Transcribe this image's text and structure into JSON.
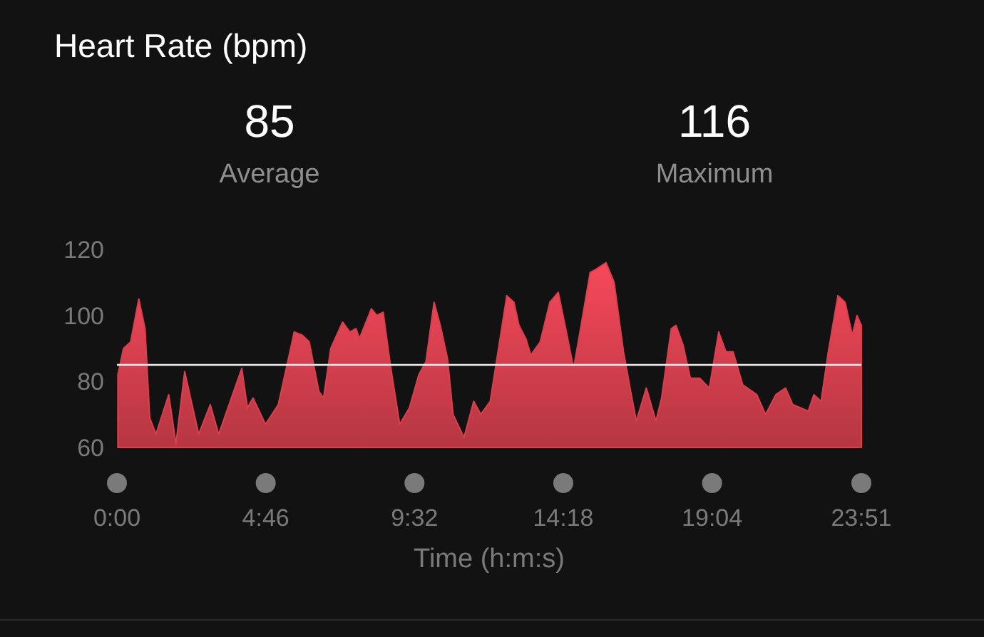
{
  "chart_data": {
    "type": "area",
    "title": "Heart Rate (bpm)",
    "xlabel": "Time (h:m:s)",
    "annotations": [
      "85",
      "Average",
      "116",
      "Maximum"
    ],
    "xlim": [
      0,
      23.85
    ],
    "ylim": [
      60,
      120
    ],
    "yticks": [
      60,
      80,
      100,
      120
    ],
    "xticks": [
      {
        "value": 0,
        "label": "0:00"
      },
      {
        "value": 4.7667,
        "label": "4:46"
      },
      {
        "value": 9.5333,
        "label": "9:32"
      },
      {
        "value": 14.3,
        "label": "14:18"
      },
      {
        "value": 19.0667,
        "label": "19:04"
      },
      {
        "value": 23.85,
        "label": "23:51"
      }
    ],
    "grid": false,
    "ref_lines": [
      {
        "axis": "y",
        "value": 85,
        "color": "#e6e6e6"
      }
    ],
    "series": [
      {
        "color": "#d9404f",
        "x": [
          0.03,
          0.21,
          0.44,
          0.7,
          0.9,
          1.05,
          1.25,
          1.66,
          1.89,
          2.17,
          2.62,
          2.99,
          3.26,
          4.0,
          4.18,
          4.36,
          4.76,
          5.17,
          5.68,
          5.94,
          6.16,
          6.47,
          6.62,
          6.85,
          7.23,
          7.46,
          7.66,
          7.77,
          8.15,
          8.33,
          8.53,
          8.76,
          9.06,
          9.37,
          9.67,
          9.9,
          10.16,
          10.36,
          10.59,
          10.77,
          11.12,
          11.43,
          11.66,
          11.96,
          12.49,
          12.72,
          12.88,
          13.1,
          13.26,
          13.56,
          13.87,
          14.14,
          14.4,
          14.63,
          14.78,
          15.16,
          15.35,
          15.67,
          15.93,
          16.23,
          16.46,
          16.64,
          16.96,
          17.27,
          17.45,
          17.76,
          17.91,
          18.14,
          18.37,
          18.67,
          18.98,
          19.28,
          19.51,
          19.74,
          20.05,
          20.5,
          20.78,
          21.11,
          21.42,
          21.65,
          22.15,
          22.33,
          22.56,
          22.79,
          23.1,
          23.33,
          23.56,
          23.71,
          23.85
        ],
        "values": [
          82,
          90,
          92,
          105,
          96,
          69,
          64,
          76,
          61,
          83,
          64,
          73,
          64,
          84,
          72,
          75,
          67,
          73,
          95,
          94,
          92,
          77,
          75,
          90,
          98,
          95,
          96,
          93,
          102,
          100,
          101,
          85,
          67,
          72,
          82,
          86,
          104,
          97,
          87,
          70,
          63,
          74,
          70,
          74,
          106,
          104,
          97,
          93,
          88,
          92,
          104,
          107,
          95,
          84,
          92,
          113,
          114,
          116,
          110,
          89,
          77,
          68,
          78,
          68,
          75,
          96,
          97,
          91,
          81,
          81,
          78,
          95,
          89,
          89,
          79,
          76,
          70,
          76,
          78,
          73,
          71,
          76,
          74,
          89,
          106,
          104,
          94,
          100,
          97
        ]
      }
    ]
  }
}
